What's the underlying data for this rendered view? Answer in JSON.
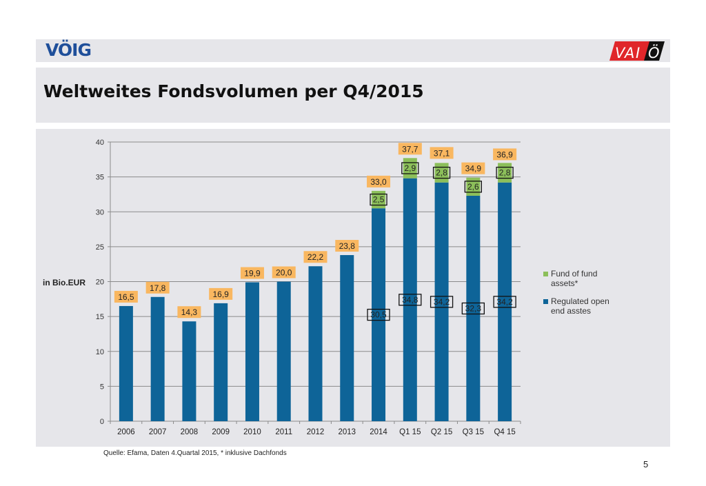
{
  "header": {
    "left_logo": "VÖIG",
    "right_logo": [
      "V",
      "A",
      "I",
      "Ö"
    ]
  },
  "title": "Weltweites Fondsvolumen per Q4/2015",
  "footer": {
    "source": "Quelle: Efama, Daten 4.Quartal 2015, * inklusive Dachfonds",
    "page_number": "5"
  },
  "colors": {
    "regulated": "#0e6498",
    "fund_of_fund": "#8cbf5a",
    "total_label_bg": "#f9b760",
    "background": "#e6e6ea",
    "logo_blue": "#1f4f9a",
    "logo_red": "#e0262a"
  },
  "chart_data": {
    "type": "bar",
    "stacked": true,
    "title": "",
    "ylabel": "in Bio.EUR",
    "xlabel": "",
    "ylim": [
      0,
      40
    ],
    "yticks": [
      0,
      5,
      10,
      15,
      20,
      25,
      30,
      35,
      40
    ],
    "grid": true,
    "legend_position": "right",
    "categories": [
      "2006",
      "2007",
      "2008",
      "2009",
      "2010",
      "2011",
      "2012",
      "2013",
      "2014",
      "Q1 15",
      "Q2 15",
      "Q3 15",
      "Q4 15"
    ],
    "series": [
      {
        "name": "Regulated open end asstes",
        "key": "regulated",
        "values": [
          16.5,
          17.8,
          14.3,
          16.9,
          19.9,
          20.0,
          22.2,
          23.8,
          30.5,
          34.8,
          34.2,
          32.3,
          34.2
        ],
        "labels": [
          null,
          null,
          null,
          null,
          null,
          null,
          null,
          null,
          "30,5",
          "34,8",
          "34,2",
          "32,3",
          "34,2"
        ]
      },
      {
        "name": "Fund of fund assets*",
        "key": "fund_of_fund",
        "values": [
          0,
          0,
          0,
          0,
          0,
          0,
          0,
          0,
          2.5,
          2.9,
          2.8,
          2.6,
          2.8
        ],
        "labels": [
          null,
          null,
          null,
          null,
          null,
          null,
          null,
          null,
          "2,5",
          "2,9",
          "2,8",
          "2,6",
          "2,8"
        ]
      }
    ],
    "totals": [
      16.5,
      17.8,
      14.3,
      16.9,
      19.9,
      20.0,
      22.2,
      23.8,
      33.0,
      37.7,
      37.1,
      34.9,
      36.9
    ],
    "total_labels": [
      "16,5",
      "17,8",
      "14,3",
      "16,9",
      "19,9",
      "20,0",
      "22,2",
      "23,8",
      "33,0",
      "37,7",
      "37,1",
      "34,9",
      "36,9"
    ],
    "legend": [
      {
        "label_lines": [
          "Fund of fund",
          "assets*"
        ],
        "key": "fund_of_fund"
      },
      {
        "label_lines": [
          "Regulated open",
          "end asstes"
        ],
        "key": "regulated"
      }
    ]
  }
}
